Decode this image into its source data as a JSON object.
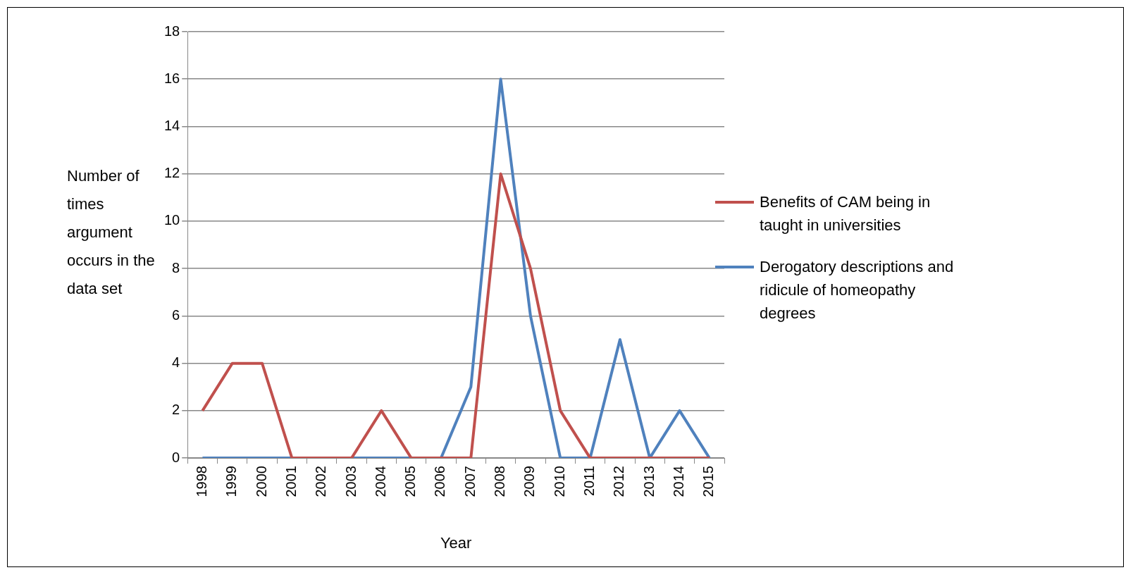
{
  "chart_data": {
    "type": "line",
    "xlabel": "Year",
    "ylabel": "Number of times argument occurs in the data set",
    "categories": [
      "1998",
      "1999",
      "2000",
      "2001",
      "2002",
      "2003",
      "2004",
      "2005",
      "2006",
      "2007",
      "2008",
      "2009",
      "2010",
      "2011",
      "2012",
      "2013",
      "2014",
      "2015"
    ],
    "series": [
      {
        "name": "Benefits of CAM being in taught in universities",
        "color": "#c0504d",
        "values": [
          2,
          4,
          4,
          0,
          0,
          0,
          2,
          0,
          0,
          0,
          12,
          8,
          2,
          0,
          0,
          0,
          0,
          0
        ]
      },
      {
        "name": "Derogatory descriptions and ridicule of homeopathy degrees",
        "color": "#4f81bd",
        "values": [
          0,
          0,
          0,
          0,
          0,
          0,
          0,
          0,
          0,
          3,
          16,
          6,
          0,
          0,
          5,
          0,
          2,
          0
        ]
      }
    ],
    "ylim": [
      0,
      18
    ],
    "yticks": [
      0,
      2,
      4,
      6,
      8,
      10,
      12,
      14,
      16,
      18
    ],
    "grid": "y",
    "legend": "right",
    "marker": "none",
    "line_style": "solid"
  }
}
